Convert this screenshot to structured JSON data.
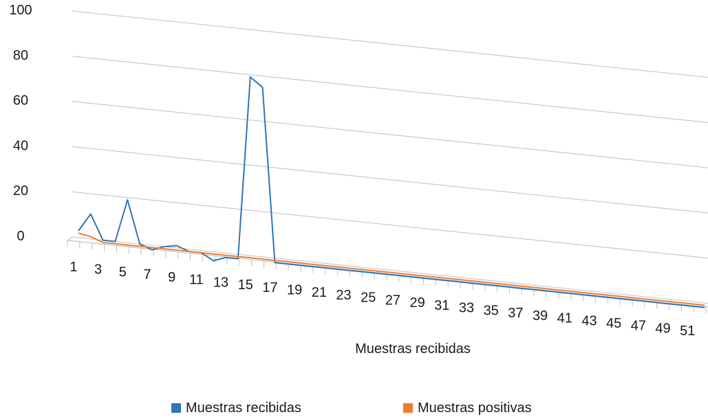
{
  "chart_data": {
    "type": "line",
    "xlabel": "Muestras recibidas",
    "ylabel": "",
    "ylim": [
      0,
      100
    ],
    "y_ticks": [
      0,
      20,
      40,
      60,
      80,
      100
    ],
    "x_tick_labels": [
      "1",
      "3",
      "5",
      "7",
      "9",
      "11",
      "13",
      "15",
      "17",
      "19",
      "21",
      "23",
      "25",
      "27",
      "29",
      "31",
      "33",
      "35",
      "37",
      "39",
      "41",
      "43",
      "45",
      "47",
      "49",
      "51"
    ],
    "x": [
      1,
      2,
      3,
      4,
      5,
      6,
      7,
      8,
      9,
      10,
      11,
      12,
      13,
      14,
      15,
      16,
      17,
      18,
      19,
      20,
      21,
      22,
      23,
      24,
      25,
      26,
      27,
      28,
      29,
      30,
      31,
      32,
      33,
      34,
      35,
      36,
      37,
      38,
      39,
      40,
      41,
      42,
      43,
      44,
      45,
      46,
      47,
      48,
      49,
      50,
      51,
      52
    ],
    "grid": "horizontal",
    "legend_position": "bottom",
    "series": [
      {
        "name": "Muestras recibidas",
        "color": "#2e75b6",
        "values": [
          3,
          11,
          0,
          0,
          19,
          0,
          -2,
          0,
          1,
          -1,
          -1,
          -4,
          -2,
          -2,
          79,
          75,
          -2,
          -2,
          -2,
          -2,
          -2,
          -2,
          -2,
          -2,
          -2,
          -2,
          -2,
          -2,
          -2,
          -2,
          -2,
          -2,
          -2,
          -2,
          -2,
          -2,
          -2,
          -2,
          -2,
          -2,
          -2,
          -2,
          -2,
          -2,
          -2,
          -2,
          -2,
          -2,
          -2,
          -2,
          -2,
          -2
        ]
      },
      {
        "name": "Muestras positivas",
        "color": "#ed7d31",
        "values": [
          2,
          1,
          -1,
          -1,
          -1,
          -1,
          -1,
          -1,
          -1,
          -1,
          -1,
          -1,
          -1,
          -1,
          -1,
          -1,
          -1,
          -1,
          -1,
          -1,
          -1,
          -1,
          -1,
          -1,
          -1,
          -1,
          -1,
          -1,
          -1,
          -1,
          -1,
          -1,
          -1,
          -1,
          -1,
          -1,
          -1,
          -1,
          -1,
          -1,
          -1,
          -1,
          -1,
          -1,
          -1,
          -1,
          -1,
          -1,
          -1,
          -1,
          -1,
          -1
        ]
      }
    ]
  }
}
